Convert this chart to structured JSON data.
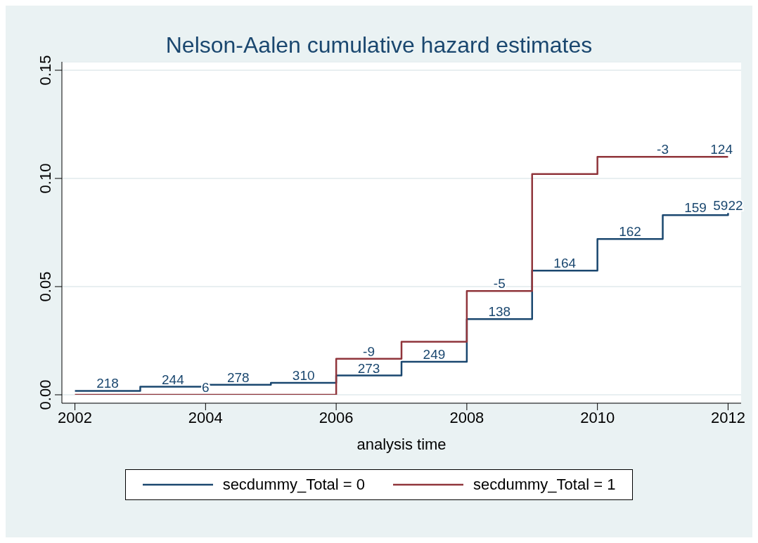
{
  "chart_data": {
    "type": "step",
    "title": "Nelson-Aalen cumulative hazard estimates",
    "xlabel": "analysis time",
    "xlim": [
      2001.8,
      2012.2
    ],
    "xticks": [
      2002,
      2004,
      2006,
      2008,
      2010,
      2012
    ],
    "ylim": [
      0,
      0.15
    ],
    "yticks": [
      {
        "value": 0,
        "label": "0.00"
      },
      {
        "value": 0.05,
        "label": "0.05"
      },
      {
        "value": 0.1,
        "label": "0.10"
      },
      {
        "value": 0.15,
        "label": "0.15"
      }
    ],
    "grid": "y",
    "legend": "bottom",
    "marker": "none",
    "line_style": "solid",
    "series": [
      {
        "name": "secdummy_Total = 0",
        "color": "#1a476f",
        "x": [
          2002,
          2003,
          2004,
          2005,
          2006,
          2007,
          2008,
          2009,
          2010,
          2011,
          2012
        ],
        "values": [
          0.0018,
          0.0037,
          0.0046,
          0.0055,
          0.0089,
          0.0153,
          0.035,
          0.0574,
          0.072,
          0.083,
          0.084
        ]
      },
      {
        "name": "secdummy_Total = 1",
        "color": "#90353b",
        "x": [
          2002,
          2006,
          2007,
          2008,
          2009,
          2010,
          2012
        ],
        "values": [
          0,
          0.0166,
          0.0245,
          0.048,
          0.102,
          0.11,
          0.11
        ]
      }
    ],
    "annotations": [
      {
        "text": "218",
        "x": 2002.5,
        "y": 0.0018
      },
      {
        "text": "244",
        "x": 2003.5,
        "y": 0.0037
      },
      {
        "text": "6",
        "x": 2004,
        "y": 0
      },
      {
        "text": "278",
        "x": 2004.5,
        "y": 0.0046
      },
      {
        "text": "310",
        "x": 2005.5,
        "y": 0.0055
      },
      {
        "text": "-9",
        "x": 2006.5,
        "y": 0.0166
      },
      {
        "text": "273",
        "x": 2006.5,
        "y": 0.0089
      },
      {
        "text": "249",
        "x": 2007.5,
        "y": 0.0153
      },
      {
        "text": "-5",
        "x": 2008.5,
        "y": 0.048
      },
      {
        "text": "138",
        "x": 2008.5,
        "y": 0.035
      },
      {
        "text": "164",
        "x": 2009.5,
        "y": 0.0574
      },
      {
        "text": "162",
        "x": 2010.5,
        "y": 0.072
      },
      {
        "text": "-3",
        "x": 2011,
        "y": 0.11
      },
      {
        "text": "124",
        "x": 2011.9,
        "y": 0.11
      },
      {
        "text": "159",
        "x": 2011.5,
        "y": 0.083
      },
      {
        "text": "5922",
        "x": 2012,
        "y": 0.084
      }
    ]
  }
}
